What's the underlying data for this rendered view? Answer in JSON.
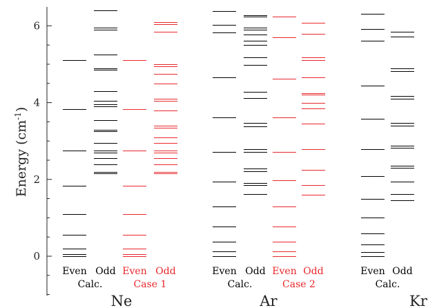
{
  "chart_data": {
    "type": "level-diagram",
    "ylabel_main": "Energy (cm",
    "ylabel_sup": "-1",
    "ylabel_end": ")",
    "ylim": [
      -1,
      6.5
    ],
    "yticks": [
      0,
      2,
      4,
      6
    ],
    "ytick_labels": [
      "0",
      "2",
      "4",
      "6"
    ],
    "colors": {
      "calc": "#000000",
      "case": "#e8262a"
    },
    "groups": [
      {
        "element": "Ne",
        "columns": [
          {
            "label": "Even",
            "style": "calc",
            "levels": [
              0,
              0.05,
              0.2,
              0.55,
              1.1,
              1.83,
              2.75,
              3.83,
              5.1
            ]
          },
          {
            "label": "Odd",
            "style": "calc",
            "levels": [
              2.15,
              2.2,
              2.4,
              2.55,
              2.7,
              2.75,
              2.95,
              3.25,
              3.3,
              3.55,
              3.9,
              3.95,
              4.05,
              4.3,
              4.85,
              4.9,
              5.25,
              5.9,
              5.95,
              6.4
            ]
          },
          {
            "label": "Even",
            "style": "case",
            "levels": [
              0,
              0.05,
              0.2,
              0.55,
              1.1,
              1.83,
              2.75,
              3.83,
              5.1
            ]
          },
          {
            "label": "Odd",
            "style": "case",
            "levels": [
              2.15,
              2.2,
              2.4,
              2.55,
              2.7,
              2.75,
              2.95,
              3.1,
              3.35,
              3.4,
              3.8,
              4.05,
              4.1,
              4.5,
              4.75,
              4.95,
              5.0,
              5.85,
              6.05,
              6.1
            ]
          }
        ],
        "labels_below": [
          {
            "text": "Calc.",
            "style": "calc",
            "span": [
              0,
              1
            ]
          },
          {
            "text": "Case 1",
            "style": "case",
            "span": [
              2,
              3
            ]
          }
        ]
      },
      {
        "element": "Ar",
        "columns": [
          {
            "label": "Even",
            "style": "calc",
            "levels": [
              0,
              0.12,
              0.38,
              0.78,
              1.3,
              1.95,
              2.72,
              3.62,
              4.65,
              5.82,
              6.02,
              6.38
            ]
          },
          {
            "label": "Odd",
            "style": "calc",
            "levels": [
              1.62,
              1.85,
              1.9,
              2.22,
              2.28,
              2.72,
              2.78,
              3.38,
              3.48,
              4.12,
              4.28,
              4.98,
              5.18,
              5.5,
              5.62,
              5.78,
              5.9,
              5.95,
              6.25,
              6.28
            ]
          },
          {
            "label": "Even",
            "style": "case",
            "levels": [
              0,
              0.12,
              0.38,
              0.78,
              1.3,
              1.97,
              2.72,
              3.62,
              4.62,
              5.7,
              6.25
            ]
          },
          {
            "label": "Odd",
            "style": "case",
            "levels": [
              1.6,
              1.85,
              2.25,
              2.78,
              3.45,
              3.85,
              4.0,
              4.2,
              4.25,
              4.65,
              5.1,
              5.18,
              5.8,
              6.08
            ]
          }
        ],
        "labels_below": [
          {
            "text": "Calc.",
            "style": "calc",
            "span": [
              0,
              1
            ]
          },
          {
            "text": "Case 2",
            "style": "case",
            "span": [
              2,
              3
            ]
          }
        ]
      },
      {
        "element": "Kr",
        "columns": [
          {
            "label": "Even",
            "style": "calc",
            "levels": [
              0,
              0.1,
              0.3,
              0.6,
              1.0,
              1.5,
              2.08,
              2.78,
              3.58,
              4.45,
              5.62,
              5.92,
              6.32
            ]
          },
          {
            "label": "Odd",
            "style": "calc",
            "levels": [
              1.45,
              1.62,
              1.95,
              2.3,
              2.35,
              2.82,
              2.88,
              3.4,
              3.48,
              4.1,
              4.18,
              4.82,
              4.9,
              5.72,
              5.85
            ]
          }
        ],
        "labels_below": [
          {
            "text": "Calc.",
            "style": "calc",
            "span": [
              0,
              1
            ]
          }
        ]
      }
    ]
  }
}
